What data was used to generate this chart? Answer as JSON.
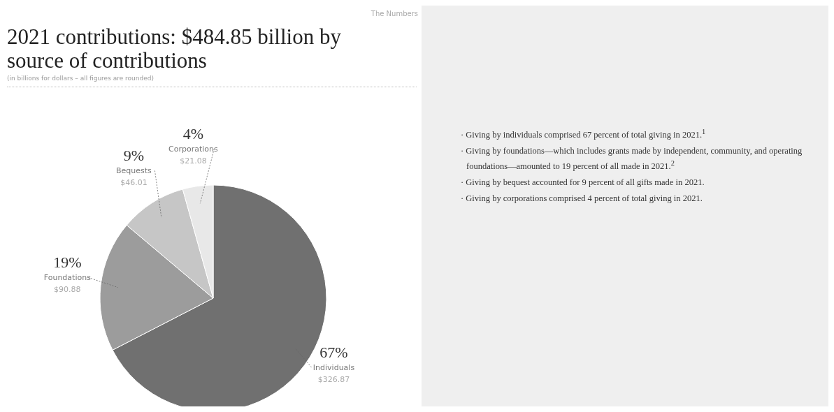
{
  "chart_data": {
    "type": "pie",
    "title": "2021 contributions: $484.85 billion by source of contributions",
    "subtitle": "(in billions for dollars – all figures are rounded)",
    "categories": [
      "Individuals",
      "Foundations",
      "Bequests",
      "Corporations"
    ],
    "values": [
      326.87,
      90.88,
      46.01,
      21.08
    ],
    "colors": [
      "#707070",
      "#9c9c9c",
      "#c6c6c6",
      "#e8e8e8"
    ],
    "value_labels": [
      "$326.87",
      "$90.88",
      "$46.01",
      "$21.08"
    ],
    "annotations": [
      "The Numbers",
      {
        "text": "67%",
        "x": "Individuals"
      },
      {
        "text": "19%",
        "x": "Foundations"
      },
      {
        "text": "9%",
        "x": "Bequests"
      },
      {
        "text": "4%",
        "x": "Corporations"
      },
      "· Giving by individuals comprised 67 percent of total giving in 2021.$^{1}$",
      "· Giving by foundations—which includes grants made by independent, community, and operating foundations—amounted to 19 percent of all made in 2021.$^{2}$",
      "· Giving by bequest accounted for 9 percent of all gifts made in 2021.",
      "· Giving by corporations comprised 4 percent of total giving in 2021."
    ],
    "legend": false
  }
}
